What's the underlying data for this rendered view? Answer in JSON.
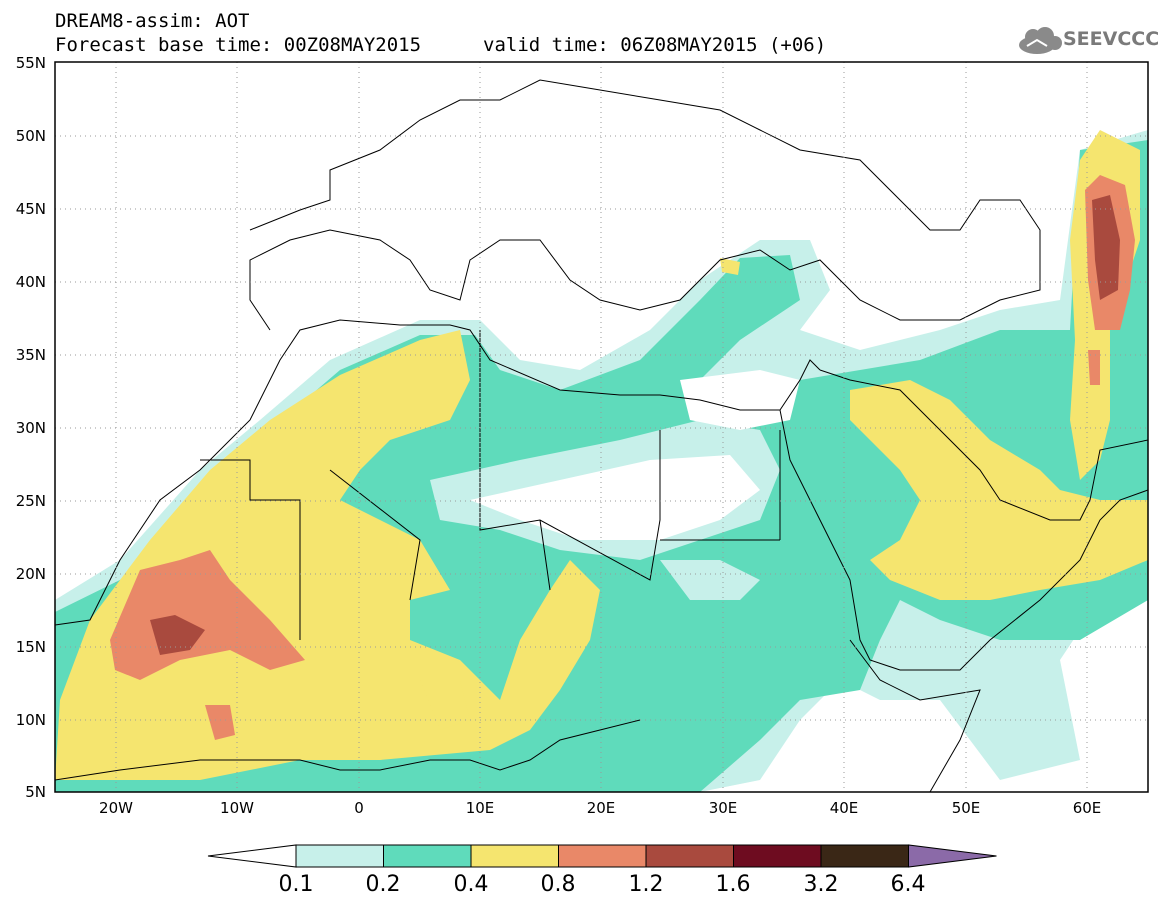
{
  "header": {
    "title": "DREAM8-assim: AOT",
    "base_time": "Forecast base time: 00Z08MAY2015",
    "valid_time": "valid time: 06Z08MAY2015 (+06)",
    "logo_text": "SEEVCCC",
    "logo_icon": "cloud-icon"
  },
  "map": {
    "lat_labels": [
      "55N",
      "50N",
      "45N",
      "40N",
      "35N",
      "30N",
      "25N",
      "20N",
      "15N",
      "10N",
      "5N"
    ],
    "lon_labels": [
      "20W",
      "10W",
      "0",
      "10E",
      "20E",
      "30E",
      "40E",
      "50E",
      "60E"
    ],
    "extent": {
      "lon_min": -25,
      "lon_max": 65,
      "lat_min": 5,
      "lat_max": 55
    }
  },
  "colorbar": {
    "labels": [
      "0.1",
      "0.2",
      "0.4",
      "0.8",
      "1.2",
      "1.6",
      "3.2",
      "6.4"
    ],
    "colors": [
      "#c7f0ea",
      "#5fdbbb",
      "#f5e56f",
      "#e98868",
      "#a94a3e",
      "#6e0c20",
      "#3a2716",
      "#8b6aa8"
    ]
  }
}
